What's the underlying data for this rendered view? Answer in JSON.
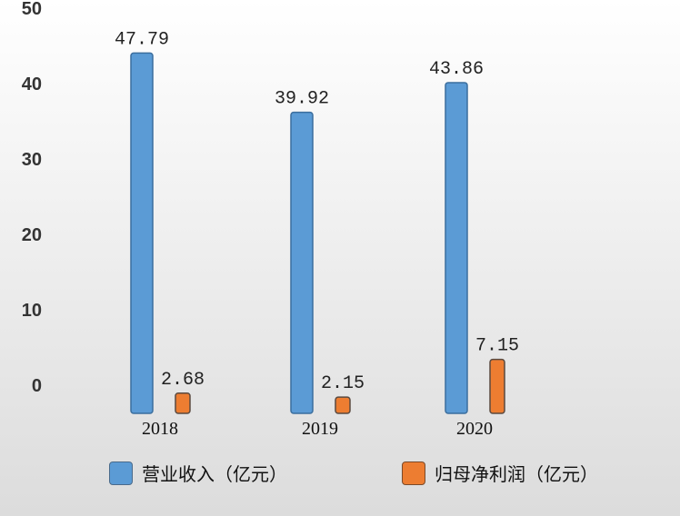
{
  "chart_data": {
    "type": "bar",
    "categories": [
      "2018",
      "2019",
      "2020"
    ],
    "series": [
      {
        "name": "营业收入（亿元）",
        "values": [
          47.79,
          39.92,
          43.86
        ],
        "labels": [
          "47.79",
          "39.92",
          "43.86"
        ],
        "color": "#5b9bd5"
      },
      {
        "name": "归母净利润（亿元）",
        "values": [
          2.68,
          2.15,
          7.15
        ],
        "labels": [
          "2.68",
          "2.15",
          "7.15"
        ],
        "color": "#ed7d31"
      }
    ],
    "yticks": [
      "0",
      "10",
      "20",
      "30",
      "40",
      "50"
    ],
    "ylim": [
      0,
      50
    ],
    "grid": false,
    "legend_position": "bottom"
  }
}
